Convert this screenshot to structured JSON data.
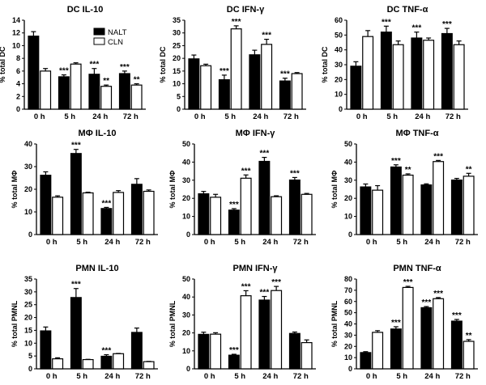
{
  "legend": [
    "NALT",
    "CLN"
  ],
  "colors": {
    "nalt": "#000000",
    "cln": "#ffffff",
    "stroke": "#000000"
  },
  "chart_data": [
    {
      "type": "bar",
      "title": "DC IL-10",
      "ylabel": "% total DC",
      "categories": [
        "0 h",
        "5 h",
        "24 h",
        "72 h"
      ],
      "ylim": [
        0,
        14
      ],
      "yticks": [
        0,
        2,
        4,
        6,
        8,
        10,
        12,
        14
      ],
      "series": [
        {
          "name": "NALT",
          "values": [
            11.5,
            5.1,
            5.5,
            5.6
          ],
          "errors": [
            0.7,
            0.3,
            0.9,
            0.4
          ],
          "sig": [
            "",
            "***",
            "***",
            "***"
          ]
        },
        {
          "name": "CLN",
          "values": [
            6.0,
            7.1,
            3.6,
            3.8
          ],
          "errors": [
            0.4,
            0.2,
            0.2,
            0.2
          ],
          "sig": [
            "",
            "",
            "**",
            "**"
          ]
        }
      ]
    },
    {
      "type": "bar",
      "title": "DC IFN-γ",
      "ylabel": "% total DC",
      "categories": [
        "0 h",
        "5 h",
        "24 h",
        "72 h"
      ],
      "ylim": [
        0,
        35
      ],
      "yticks": [
        0,
        5,
        10,
        15,
        20,
        25,
        30,
        35
      ],
      "series": [
        {
          "name": "NALT",
          "values": [
            19.8,
            11.6,
            21.4,
            11.1
          ],
          "errors": [
            1.5,
            1.8,
            1.8,
            1.1
          ],
          "sig": [
            "",
            "***",
            "",
            "***"
          ]
        },
        {
          "name": "CLN",
          "values": [
            17.1,
            31.6,
            25.5,
            14.0
          ],
          "errors": [
            0.6,
            1.2,
            2.0,
            0.4
          ],
          "sig": [
            "",
            "***",
            "***",
            ""
          ]
        }
      ]
    },
    {
      "type": "bar",
      "title": "DC TNF-α",
      "ylabel": "% total DC",
      "categories": [
        "0 h",
        "5 h",
        "24 h",
        "72 h"
      ],
      "ylim": [
        0,
        60
      ],
      "yticks": [
        0,
        10,
        20,
        30,
        40,
        50,
        60
      ],
      "series": [
        {
          "name": "NALT",
          "values": [
            29,
            52,
            48,
            51
          ],
          "errors": [
            3,
            4,
            4,
            3.5
          ],
          "sig": [
            "",
            "***",
            "***",
            "***"
          ]
        },
        {
          "name": "CLN",
          "values": [
            49,
            43.5,
            46.5,
            43.5
          ],
          "errors": [
            4,
            2.5,
            1.5,
            2.5
          ],
          "sig": [
            "",
            "",
            "",
            ""
          ]
        }
      ]
    },
    {
      "type": "bar",
      "title": "MΦ IL-10",
      "ylabel": "% total MΦ",
      "categories": [
        "0 h",
        "5 h",
        "24 h",
        "72 h"
      ],
      "ylim": [
        0,
        40
      ],
      "yticks": [
        0,
        10,
        20,
        30,
        40
      ],
      "series": [
        {
          "name": "NALT",
          "values": [
            26.2,
            35.8,
            11.5,
            22.2
          ],
          "errors": [
            1.5,
            1.8,
            0.5,
            2.5
          ],
          "sig": [
            "",
            "***",
            "***",
            ""
          ]
        },
        {
          "name": "CLN",
          "values": [
            16.5,
            18.4,
            18.6,
            19.1
          ],
          "errors": [
            0.6,
            0.3,
            0.8,
            0.6
          ],
          "sig": [
            "",
            "",
            "",
            ""
          ]
        }
      ]
    },
    {
      "type": "bar",
      "title": "MΦ IFN-γ",
      "ylabel": "% total MΦ",
      "categories": [
        "0 h",
        "5 h",
        "24 h",
        "72 h"
      ],
      "ylim": [
        0,
        50
      ],
      "yticks": [
        0,
        10,
        20,
        30,
        40,
        50
      ],
      "series": [
        {
          "name": "NALT",
          "values": [
            22.5,
            13.5,
            40.4,
            30.1
          ],
          "errors": [
            1.3,
            0.8,
            2.2,
            1.4
          ],
          "sig": [
            "",
            "***",
            "***",
            "***"
          ]
        },
        {
          "name": "CLN",
          "values": [
            20.6,
            31.1,
            20.9,
            22.2
          ],
          "errors": [
            1.6,
            1.8,
            0.5,
            0.5
          ],
          "sig": [
            "",
            "***",
            "",
            ""
          ]
        }
      ]
    },
    {
      "type": "bar",
      "title": "MΦ TNF-α",
      "ylabel": "% total MΦ",
      "categories": [
        "0 h",
        "5 h",
        "24 h",
        "72 h"
      ],
      "ylim": [
        0,
        50
      ],
      "yticks": [
        0,
        10,
        20,
        30,
        40,
        50
      ],
      "series": [
        {
          "name": "NALT",
          "values": [
            26.3,
            37.3,
            27.4,
            30.1
          ],
          "errors": [
            1.6,
            1.2,
            0.6,
            0.9
          ],
          "sig": [
            "",
            "***",
            "",
            ""
          ]
        },
        {
          "name": "CLN",
          "values": [
            24.5,
            32.8,
            40.3,
            32.2
          ],
          "errors": [
            2.5,
            0.7,
            0.6,
            1.6
          ],
          "sig": [
            "",
            "**",
            "***",
            "**"
          ]
        }
      ]
    },
    {
      "type": "bar",
      "title": "PMN IL-10",
      "ylabel": "% total PMNL",
      "categories": [
        "0 h",
        "5 h",
        "24 h",
        "72 h"
      ],
      "ylim": [
        0,
        35
      ],
      "yticks": [
        0,
        5,
        10,
        15,
        20,
        25,
        30,
        35
      ],
      "series": [
        {
          "name": "NALT",
          "values": [
            14.8,
            27.8,
            4.9,
            14.2
          ],
          "errors": [
            1.5,
            3.5,
            0.6,
            1.7
          ],
          "sig": [
            "",
            "***",
            "***",
            ""
          ]
        },
        {
          "name": "CLN",
          "values": [
            3.9,
            3.6,
            5.9,
            2.8
          ],
          "errors": [
            0.4,
            0.1,
            0.1,
            0.1
          ],
          "sig": [
            "",
            "",
            "",
            ""
          ]
        }
      ]
    },
    {
      "type": "bar",
      "title": "PMN IFN-γ",
      "ylabel": "% total PMNL",
      "categories": [
        "0 h",
        "5 h",
        "24 h",
        "72 h"
      ],
      "ylim": [
        0,
        50
      ],
      "yticks": [
        0,
        10,
        20,
        30,
        40,
        50
      ],
      "series": [
        {
          "name": "NALT",
          "values": [
            19.2,
            7.6,
            38.3,
            19.7
          ],
          "errors": [
            1.2,
            0.5,
            2.0,
            0.8
          ],
          "sig": [
            "",
            "***",
            "***",
            ""
          ]
        },
        {
          "name": "CLN",
          "values": [
            19.3,
            40.7,
            43.6,
            14.6
          ],
          "errors": [
            0.8,
            2.8,
            2.3,
            1.5
          ],
          "sig": [
            "",
            "***",
            "***",
            ""
          ]
        }
      ]
    },
    {
      "type": "bar",
      "title": "PMN TNF-α",
      "ylabel": "% total PMNL",
      "categories": [
        "0 h",
        "5 h",
        "24 h",
        "72 h"
      ],
      "ylim": [
        0,
        80
      ],
      "yticks": [
        0,
        10,
        20,
        30,
        40,
        50,
        60,
        70,
        80
      ],
      "series": [
        {
          "name": "NALT",
          "values": [
            14.5,
            35.5,
            54.5,
            42.5
          ],
          "errors": [
            0.8,
            2,
            1,
            1.5
          ],
          "sig": [
            "",
            "***",
            "***",
            "***"
          ]
        },
        {
          "name": "CLN",
          "values": [
            32.5,
            72.5,
            62.5,
            24.5
          ],
          "errors": [
            1.5,
            1,
            1,
            1.5
          ],
          "sig": [
            "",
            "***",
            "***",
            "**"
          ]
        }
      ]
    }
  ]
}
